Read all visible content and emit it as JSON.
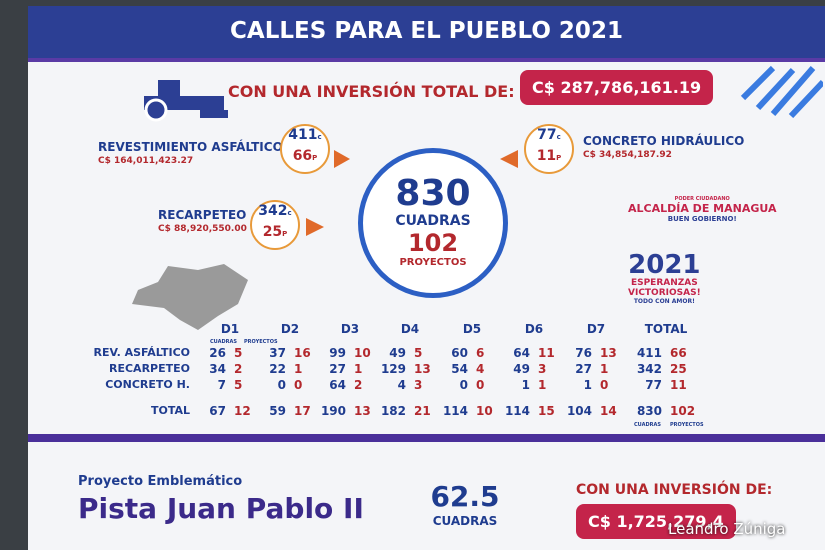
{
  "header": {
    "title": "CALLES PARA EL PUEBLO 2021"
  },
  "investment": {
    "label": "CON UNA INVERSIÓN TOTAL DE:",
    "amount": "C$ 287,786,161.19"
  },
  "programs": [
    {
      "name": "REVESTIMIENTO ASFÁLTICO",
      "amount": "C$ 164,011,423.27",
      "cuadras": 411,
      "cuadras_unit": "c",
      "proyectos": 66,
      "proyectos_unit": "P"
    },
    {
      "name": "RECARPETEO",
      "amount": "C$ 88,920,550.00",
      "cuadras": 342,
      "cuadras_unit": "c",
      "proyectos": 25,
      "proyectos_unit": "P"
    },
    {
      "name": "CONCRETO HIDRÁULICO",
      "amount": "C$ 34,854,187.92",
      "cuadras": 77,
      "cuadras_unit": "c",
      "proyectos": 11,
      "proyectos_unit": "P"
    }
  ],
  "summary": {
    "cuadras": 830,
    "cuadras_label": "CUADRAS",
    "proyectos": 102,
    "proyectos_label": "PROYECTOS"
  },
  "logos": {
    "alcaldia": [
      "PODER CIUDADANO",
      "ALCALDÍA DE MANAGUA",
      "BUEN GOBIERNO!"
    ],
    "campaign": {
      "year": "2021",
      "lines": [
        "ESPERANZAS",
        "VICTORIOSAS!",
        "TODO CON AMOR!"
      ]
    }
  },
  "table": {
    "columns": [
      "D1",
      "D2",
      "D3",
      "D4",
      "D5",
      "D6",
      "D7",
      "TOTAL"
    ],
    "subheaders": [
      "CUADRAS",
      "PROYECTOS"
    ],
    "rows": [
      {
        "label": "REV. ASFÁLTICO",
        "values": [
          [
            26,
            5
          ],
          [
            37,
            16
          ],
          [
            99,
            10
          ],
          [
            49,
            5
          ],
          [
            60,
            6
          ],
          [
            64,
            11
          ],
          [
            76,
            13
          ],
          [
            411,
            66
          ]
        ]
      },
      {
        "label": "RECARPETEO",
        "values": [
          [
            34,
            2
          ],
          [
            22,
            1
          ],
          [
            27,
            1
          ],
          [
            129,
            13
          ],
          [
            54,
            4
          ],
          [
            49,
            3
          ],
          [
            27,
            1
          ],
          [
            342,
            25
          ]
        ]
      },
      {
        "label": "CONCRETO H.",
        "values": [
          [
            7,
            5
          ],
          [
            0,
            0
          ],
          [
            64,
            2
          ],
          [
            4,
            3
          ],
          [
            0,
            0
          ],
          [
            1,
            1
          ],
          [
            1,
            0
          ],
          [
            77,
            11
          ]
        ]
      },
      {
        "label": "TOTAL",
        "values": [
          [
            67,
            12
          ],
          [
            59,
            17
          ],
          [
            190,
            13
          ],
          [
            182,
            21
          ],
          [
            114,
            10
          ],
          [
            114,
            15
          ],
          [
            104,
            14
          ],
          [
            830,
            102
          ]
        ]
      }
    ]
  },
  "footer": {
    "kicker": "Proyecto Emblemático",
    "project": "Pista Juan Pablo II",
    "cuadras": 62.5,
    "cuadras_label": "CUADRAS",
    "investment_label": "CON UNA INVERSIÓN DE:",
    "investment": "C$ 1,725,279,4"
  },
  "watermark": "Leandro Zúniga"
}
